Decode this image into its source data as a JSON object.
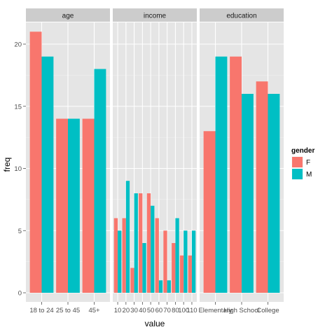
{
  "chart_data": {
    "type": "bar",
    "xlabel": "value",
    "ylabel": "freq",
    "ylim": [
      0,
      22
    ],
    "yticks": [
      0,
      5,
      10,
      15,
      20
    ],
    "grid": true,
    "legend": {
      "title": "gender",
      "placement": "right",
      "entries": [
        {
          "name": "F",
          "color": "#F8766D"
        },
        {
          "name": "M",
          "color": "#00BFC4"
        }
      ]
    },
    "series_names": [
      "F",
      "M"
    ],
    "colors": [
      "#F8766D",
      "#00BFC4"
    ],
    "facets": [
      {
        "label": "age",
        "categories": [
          "18 to 24",
          "25 to 45",
          "45+"
        ],
        "tick_labels": [
          "18 to 24",
          "25 to 45",
          "45+"
        ],
        "series": [
          {
            "name": "F",
            "values": [
              21,
              14,
              14
            ]
          },
          {
            "name": "M",
            "values": [
              19,
              14,
              18
            ]
          }
        ]
      },
      {
        "label": "income",
        "categories": [
          "10",
          "20",
          "30",
          "40",
          "50",
          "60",
          "70",
          "80",
          "100",
          "110"
        ],
        "tick_labels": [
          "10",
          "20",
          "30",
          "40",
          "50",
          "60",
          "70",
          "80",
          "100",
          "110"
        ],
        "series": [
          {
            "name": "F",
            "values": [
              6,
              6,
              2,
              8,
              8,
              6,
              5,
              4,
              3,
              3
            ]
          },
          {
            "name": "M",
            "values": [
              5,
              9,
              8,
              4,
              7,
              1,
              1,
              6,
              5,
              5
            ]
          }
        ]
      },
      {
        "label": "education",
        "categories": [
          "Elementary",
          "High School",
          "College"
        ],
        "tick_labels": [
          "Elementary",
          "High School",
          "College"
        ],
        "series": [
          {
            "name": "F",
            "values": [
              13,
              19,
              17
            ]
          },
          {
            "name": "M",
            "values": [
              19,
              16,
              16
            ]
          }
        ]
      }
    ]
  }
}
